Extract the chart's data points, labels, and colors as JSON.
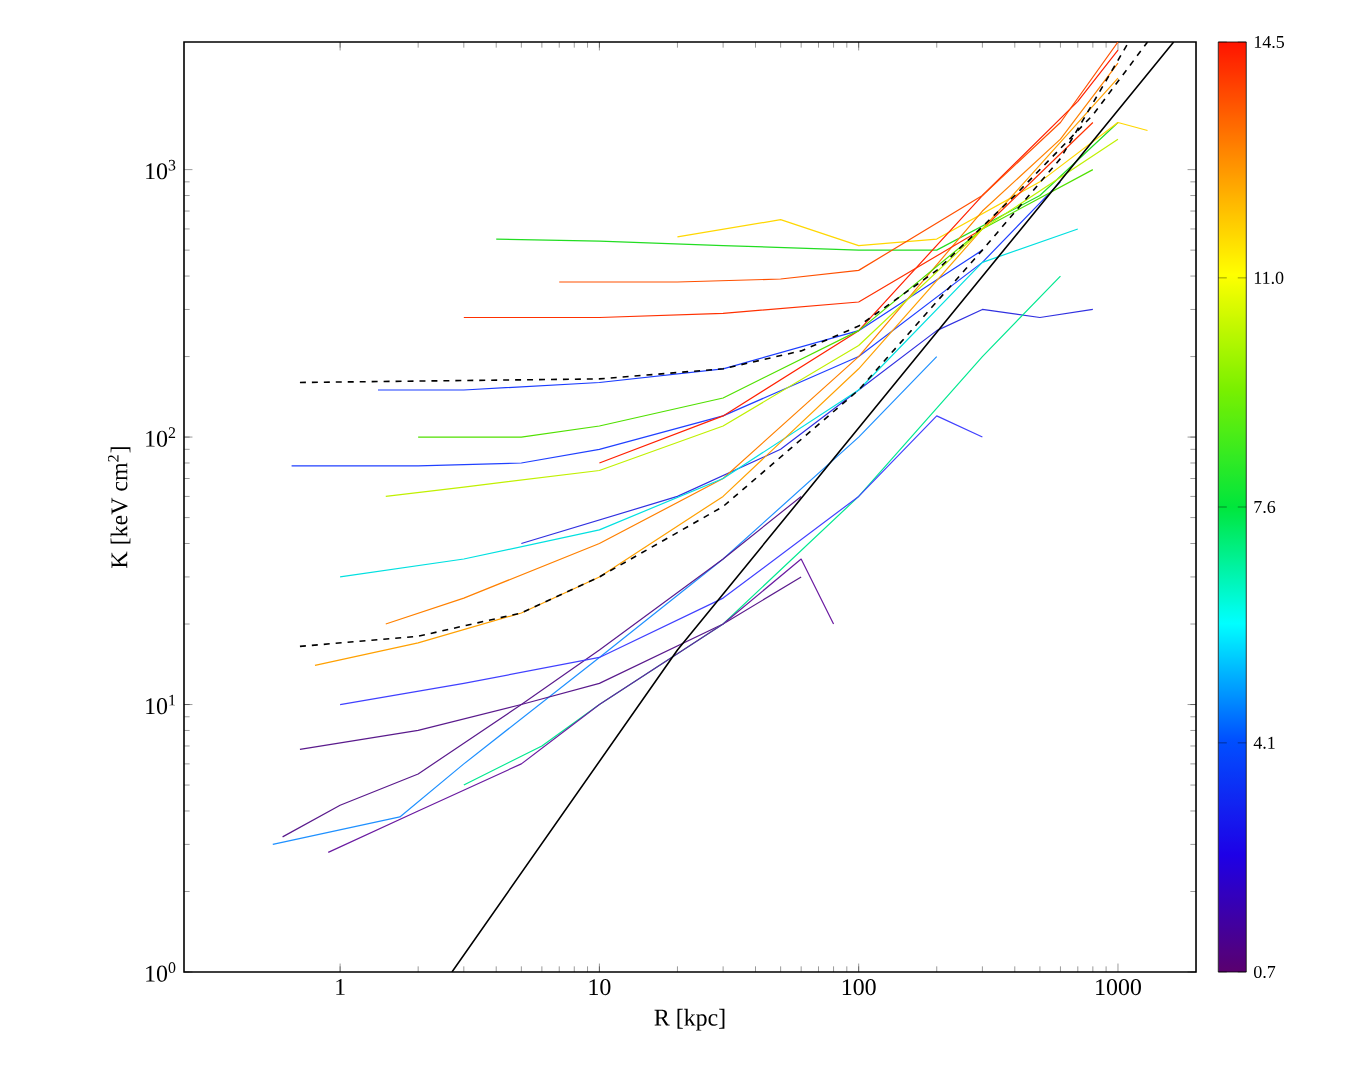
{
  "chart_data": {
    "type": "line",
    "xlabel": "R [kpc]",
    "ylabel": "K [keV cm$^{2}$]",
    "log": "xy",
    "xlim": [
      0.25,
      2000
    ],
    "ylim": [
      1,
      3000
    ],
    "xticks": [
      1,
      10,
      100,
      1000
    ],
    "yticks": [
      {
        "value": 1,
        "label": "10$^{0}$"
      },
      {
        "value": 10,
        "label": "10$^{1}$"
      },
      {
        "value": 100,
        "label": "10$^{2}$"
      },
      {
        "value": 1000,
        "label": "10$^{3}$"
      }
    ],
    "clim": [
      0.7,
      14.5
    ],
    "cticks": [
      0.7,
      4.1,
      7.6,
      {
        "value": 11,
        "label": "11.0"
      },
      14.5
    ],
    "series": [
      {
        "color": "#1e90ff",
        "x": [
          0.55,
          1.7,
          3,
          10,
          30,
          100,
          200
        ],
        "values": [
          3,
          3.8,
          6,
          15,
          35,
          100,
          200
        ]
      },
      {
        "color": "#5a1a8c",
        "x": [
          0.6,
          1,
          2,
          5,
          10,
          30,
          60
        ],
        "values": [
          3.2,
          4.2,
          5.5,
          10,
          16,
          35,
          60
        ]
      },
      {
        "color": "#3030e0",
        "x": [
          5,
          20,
          50,
          100,
          200,
          300,
          500,
          800
        ],
        "values": [
          40,
          60,
          90,
          150,
          250,
          300,
          280,
          300
        ]
      },
      {
        "color": "#5a1a8c",
        "x": [
          0.7,
          2,
          5,
          10,
          30,
          60
        ],
        "values": [
          6.8,
          8,
          10,
          12,
          20,
          30
        ]
      },
      {
        "color": "#2040ff",
        "x": [
          0.65,
          2,
          5,
          10,
          30,
          100,
          300,
          600
        ],
        "values": [
          78,
          78,
          80,
          90,
          120,
          200,
          450,
          900
        ]
      },
      {
        "color": "#1a3cff",
        "x": [
          1.4,
          3,
          10,
          30,
          100,
          300
        ],
        "values": [
          150,
          150,
          160,
          180,
          250,
          500
        ]
      },
      {
        "color": "#22dd22",
        "x": [
          4,
          10,
          30,
          100,
          200,
          500,
          1000
        ],
        "values": [
          550,
          540,
          520,
          500,
          500,
          800,
          1500
        ]
      },
      {
        "color": "#ffd700",
        "x": [
          20,
          50,
          100,
          200,
          500,
          1000,
          1300
        ],
        "values": [
          560,
          650,
          520,
          550,
          900,
          1500,
          1400
        ]
      },
      {
        "color": "#ff8000",
        "x": [
          1.5,
          3,
          10,
          30,
          100,
          300,
          600,
          1000
        ],
        "values": [
          20,
          25,
          40,
          70,
          200,
          700,
          1300,
          2500
        ]
      },
      {
        "color": "#ff2000",
        "x": [
          10,
          30,
          100,
          300,
          700,
          1000
        ],
        "values": [
          80,
          120,
          250,
          800,
          1800,
          2800
        ]
      },
      {
        "color": "#ff3000",
        "x": [
          3,
          10,
          30,
          100,
          300,
          800
        ],
        "values": [
          280,
          280,
          290,
          320,
          600,
          1500
        ]
      },
      {
        "color": "#50e000",
        "x": [
          2,
          5,
          10,
          30,
          100,
          300,
          800
        ],
        "values": [
          100,
          100,
          110,
          140,
          250,
          600,
          1000
        ]
      },
      {
        "color": "#00e0e0",
        "x": [
          1,
          3,
          10,
          30,
          100,
          300,
          700
        ],
        "values": [
          30,
          35,
          45,
          70,
          150,
          450,
          600
        ]
      },
      {
        "color": "#00e890",
        "x": [
          3,
          6,
          10,
          30,
          100,
          300,
          600
        ],
        "values": [
          5,
          7,
          10,
          20,
          60,
          200,
          400
        ]
      },
      {
        "color": "#6a1aa0",
        "x": [
          0.9,
          2,
          5,
          10,
          30,
          60,
          80
        ],
        "values": [
          2.8,
          4,
          6,
          10,
          20,
          35,
          20
        ]
      },
      {
        "color": "#ffa000",
        "x": [
          0.8,
          2,
          5,
          10,
          30,
          100,
          300,
          1000
        ],
        "values": [
          14,
          17,
          22,
          30,
          60,
          180,
          600,
          2200
        ]
      },
      {
        "color": "#4040ff",
        "x": [
          1,
          3,
          10,
          30,
          100,
          200,
          300
        ],
        "values": [
          10,
          12,
          15,
          25,
          60,
          120,
          100
        ]
      },
      {
        "color": "#c0f000",
        "x": [
          1.5,
          3,
          10,
          30,
          100,
          300,
          1000
        ],
        "values": [
          60,
          65,
          75,
          110,
          220,
          600,
          1300
        ]
      },
      {
        "color": "#ff5000",
        "x": [
          7,
          20,
          50,
          100,
          300,
          600,
          1000
        ],
        "values": [
          380,
          380,
          390,
          420,
          800,
          1500,
          3000
        ]
      },
      {
        "color": "#000000",
        "line_style": "solid",
        "x": [
          2.7,
          20,
          1640
        ],
        "values": [
          1,
          16,
          3000
        ]
      },
      {
        "color": "#000000",
        "line_style": "dashed",
        "x": [
          0.7,
          10,
          30,
          60,
          100,
          200,
          400,
          800,
          1300
        ],
        "values": [
          160,
          165,
          180,
          210,
          260,
          420,
          800,
          1600,
          3000
        ]
      },
      {
        "color": "#000000",
        "line_style": "dashed",
        "x": [
          0.7,
          2,
          5,
          10,
          30,
          100,
          300,
          600,
          1100
        ],
        "values": [
          16.5,
          18,
          22,
          30,
          55,
          150,
          500,
          1100,
          3000
        ]
      }
    ]
  }
}
